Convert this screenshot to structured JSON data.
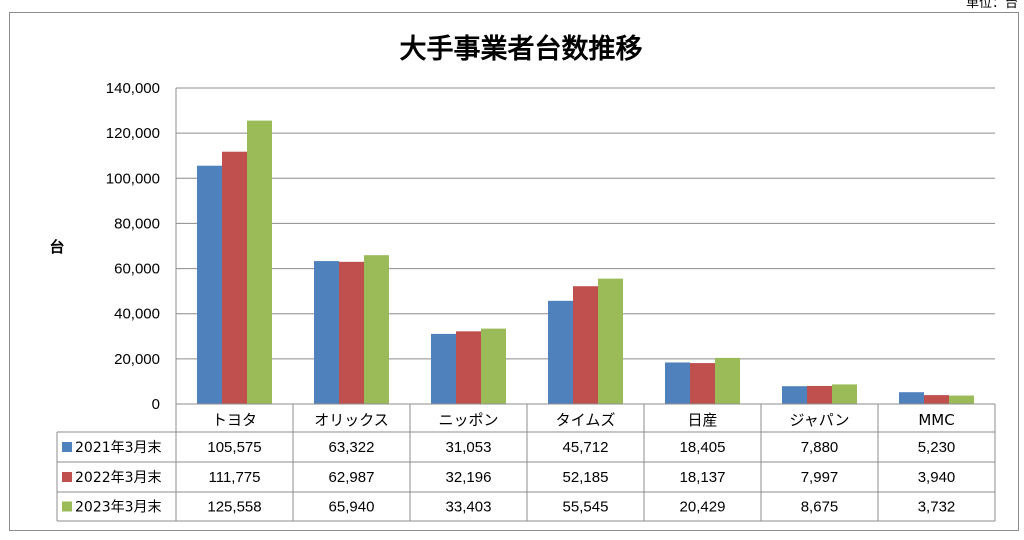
{
  "unit_note": "単位：台",
  "chart_data": {
    "type": "bar",
    "title": "大手事業者台数推移",
    "ylabel": "台",
    "xlabel": "",
    "ylim": [
      0,
      140000
    ],
    "yticks": [
      0,
      20000,
      40000,
      60000,
      80000,
      100000,
      120000,
      140000
    ],
    "ytick_labels": [
      "0",
      "20,000",
      "40,000",
      "60,000",
      "80,000",
      "100,000",
      "120,000",
      "140,000"
    ],
    "grid": true,
    "legend": "data-table",
    "categories": [
      "トヨタ",
      "オリックス",
      "ニッポン",
      "タイムズ",
      "日産",
      "ジャパン",
      "MMC"
    ],
    "series": [
      {
        "name": "2021年3月末",
        "color": "#4f81bd",
        "values": [
          105575,
          63322,
          31053,
          45712,
          18405,
          7880,
          5230
        ],
        "labels": [
          "105,575",
          "63,322",
          "31,053",
          "45,712",
          "18,405",
          "7,880",
          "5,230"
        ]
      },
      {
        "name": "2022年3月末",
        "color": "#c0504d",
        "values": [
          111775,
          62987,
          32196,
          52185,
          18137,
          7997,
          3940
        ],
        "labels": [
          "111,775",
          "62,987",
          "32,196",
          "52,185",
          "18,137",
          "7,997",
          "3,940"
        ]
      },
      {
        "name": "2023年3月末",
        "color": "#9bbb59",
        "values": [
          125558,
          65940,
          33403,
          55545,
          20429,
          8675,
          3732
        ],
        "labels": [
          "125,558",
          "65,940",
          "33,403",
          "55,545",
          "20,429",
          "8,675",
          "3,732"
        ]
      }
    ]
  }
}
